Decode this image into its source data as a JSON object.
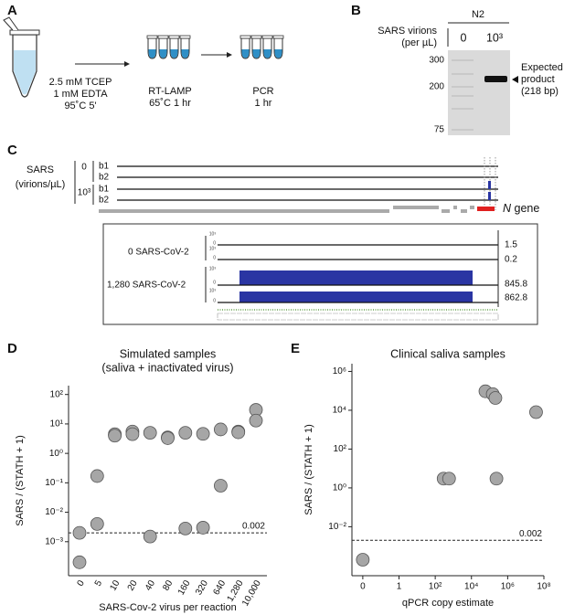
{
  "panels": {
    "A": {
      "label": "A",
      "step1": [
        "2.5 mM TCEP",
        "1 mM EDTA",
        "95˚C 5'"
      ],
      "step2": [
        "RT-LAMP",
        "65˚C 1 hr"
      ],
      "step3": [
        "PCR",
        "1 hr"
      ]
    },
    "B": {
      "label": "B",
      "strain": "N2",
      "condition": [
        "SARS virions",
        "(per µL)"
      ],
      "lanes": [
        "0",
        "10³"
      ],
      "ladder": [
        300,
        200,
        75
      ],
      "band_note": [
        "Expected",
        "product",
        "(218 bp)"
      ]
    },
    "C": {
      "label": "C",
      "sample": [
        "SARS",
        "(virions/µL)"
      ],
      "groups": [
        "0",
        "10³"
      ],
      "replicates": [
        "b1",
        "b2",
        "b1",
        "b2"
      ],
      "gene_symbol": "N",
      "gene_word": "gene",
      "inset": {
        "groups": [
          "0 SARS-CoV-2",
          "1,280 SARS-CoV-2"
        ],
        "track_max": [
          "10³",
          "10³",
          "10³",
          "10³"
        ],
        "track_min": [
          "0",
          "0",
          "0",
          "0"
        ],
        "track_values": [
          1.5,
          0.2,
          845.8,
          862.8
        ]
      }
    }
  },
  "chart_data": [
    {
      "type": "strip",
      "panel_label": "D",
      "title": "Simulated samples",
      "subtitle": "(saliva + inactivated virus)",
      "xlabel": "SARS-Cov-2 virus per reaction",
      "ylabel": "SARS / (STATH + 1)",
      "categories": [
        "0",
        "5",
        "10",
        "20",
        "40",
        "80",
        "160",
        "320",
        "640",
        "1,280",
        "10,000"
      ],
      "values": [
        [
          0.002,
          0.0002
        ],
        [
          0.17,
          0.004
        ],
        [
          4.5,
          4
        ],
        [
          5.5,
          4.5
        ],
        [
          5,
          0.0015
        ],
        [
          3.5,
          3.3
        ],
        [
          5,
          0.0028
        ],
        [
          4.6,
          0.003
        ],
        [
          6.5,
          0.08
        ],
        [
          5.5,
          5.2
        ],
        [
          30,
          13
        ]
      ],
      "color": "#a6a6a6",
      "ylog": true,
      "ylim": [
        7e-05,
        200
      ],
      "yticks": [
        {
          "value": 0.001,
          "label": "10⁻³"
        },
        {
          "value": 0.01,
          "label": "10⁻²"
        },
        {
          "value": 0.1,
          "label": "10⁻¹"
        },
        {
          "value": 1,
          "label": "10⁰"
        },
        {
          "value": 10,
          "label": "10¹"
        },
        {
          "value": 100,
          "label": "10²"
        }
      ],
      "threshold": 0.002
    },
    {
      "type": "scatter",
      "panel_label": "E",
      "title": "Clinical saliva samples",
      "xlabel": "qPCR copy estimate",
      "ylabel": "SARS / (STATH + 1)",
      "x": [
        0,
        290,
        580,
        59000,
        150000,
        210000,
        240000,
        37000000
      ],
      "values": [
        0.0002,
        3,
        3,
        95000,
        68000,
        43000,
        3,
        8000
      ],
      "color": "#a6a6a6",
      "xlog": true,
      "ylog": true,
      "xlim": [
        -0.3,
        100000000
      ],
      "ylim": [
        3e-05,
        2500000
      ],
      "xticks": [
        0,
        1,
        {
          "value": 100,
          "label": "10²"
        },
        {
          "value": 10000,
          "label": "10⁴"
        },
        {
          "value": 1000000,
          "label": "10⁶"
        },
        {
          "value": 100000000,
          "label": "10⁸"
        }
      ],
      "yticks": [
        {
          "value": 0.01,
          "label": "10⁻²"
        },
        {
          "value": 1,
          "label": "10⁰"
        },
        {
          "value": 100,
          "label": "10²"
        },
        {
          "value": 10000,
          "label": "10⁴"
        },
        {
          "value": 1000000,
          "label": "10⁶"
        }
      ],
      "threshold": 0.002
    }
  ]
}
